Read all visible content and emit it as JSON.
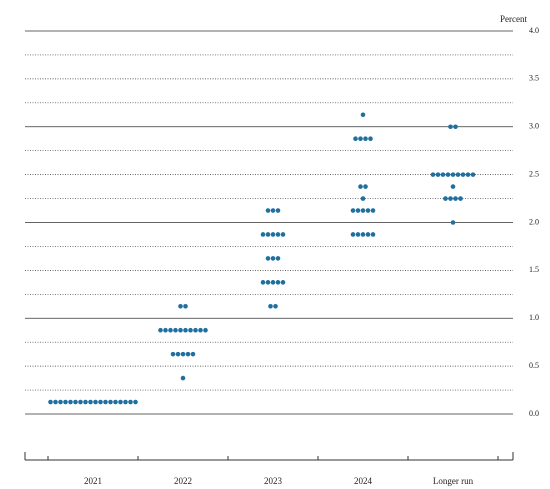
{
  "chart_data": {
    "type": "dot",
    "y_label": "Percent",
    "categories": [
      "2021",
      "2022",
      "2023",
      "2024",
      "Longer run"
    ],
    "color": "#1f6f9f",
    "ylim": [
      0,
      4
    ],
    "yticks": [
      {
        "value": 0,
        "label": "0.0"
      },
      0.5,
      {
        "value": 1,
        "label": "1.0"
      },
      1.5,
      {
        "value": 2,
        "label": "2.0"
      },
      2.5,
      {
        "value": 3,
        "label": "3.0"
      },
      3.5,
      {
        "value": 4,
        "label": "4.0"
      }
    ],
    "grid": true,
    "dots": [
      [
        {
          "y": 0.125,
          "n": 18
        }
      ],
      [
        {
          "y": 0.375,
          "n": 1
        },
        {
          "y": 0.625,
          "n": 5
        },
        {
          "y": 0.875,
          "n": 10
        },
        {
          "y": 1.125,
          "n": 2
        }
      ],
      [
        {
          "y": 1.125,
          "n": 2
        },
        {
          "y": 1.375,
          "n": 5
        },
        {
          "y": 1.625,
          "n": 3
        },
        {
          "y": 1.875,
          "n": 5
        },
        {
          "y": 2.125,
          "n": 3
        }
      ],
      [
        {
          "y": 1.875,
          "n": 5
        },
        {
          "y": 2.125,
          "n": 5
        },
        {
          "y": 2.25,
          "n": 1
        },
        {
          "y": 2.375,
          "n": 2
        },
        {
          "y": 2.875,
          "n": 4
        },
        {
          "y": 3.125,
          "n": 1
        }
      ],
      [
        {
          "y": 2.0,
          "n": 1
        },
        {
          "y": 2.25,
          "n": 4
        },
        {
          "y": 2.375,
          "n": 1
        },
        {
          "y": 2.5,
          "n": 9
        },
        {
          "y": 3.0,
          "n": 2
        }
      ]
    ]
  }
}
